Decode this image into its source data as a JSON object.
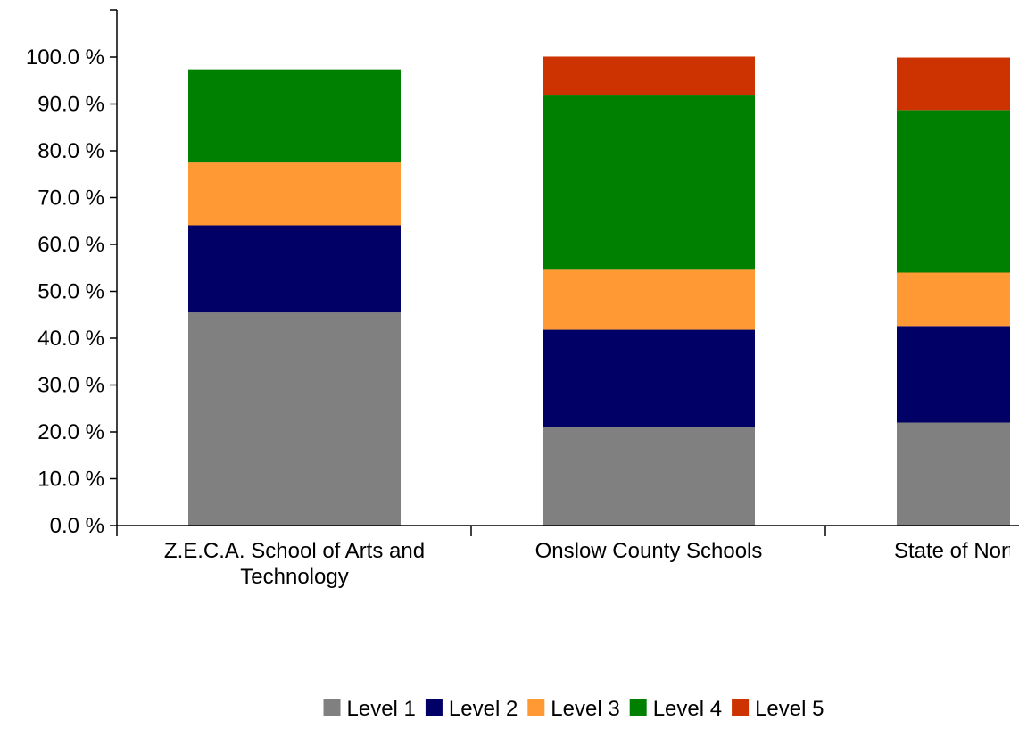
{
  "chart_data": {
    "type": "bar",
    "stacked": true,
    "categories": [
      [
        "Z.E.C.A. School of Arts and",
        "Technology"
      ],
      [
        "Onslow County Schools"
      ],
      [
        "State of North Carolina"
      ]
    ],
    "series": [
      {
        "name": "Level 1",
        "color": "#808080",
        "values": [
          45.5,
          21.0,
          22.0
        ]
      },
      {
        "name": "Level 2",
        "color": "#000066",
        "values": [
          18.6,
          20.8,
          20.6
        ]
      },
      {
        "name": "Level 3",
        "color": "#FF9933",
        "values": [
          13.4,
          12.8,
          11.4
        ]
      },
      {
        "name": "Level 4",
        "color": "#008000",
        "values": [
          19.9,
          37.2,
          34.7
        ]
      },
      {
        "name": "Level 5",
        "color": "#CC3300",
        "values": [
          0,
          8.3,
          11.2
        ]
      }
    ],
    "y_ticks": [
      "0.0 %",
      "10.0 %",
      "20.0 %",
      "30.0 %",
      "40.0 %",
      "50.0 %",
      "60.0 %",
      "70.0 %",
      "80.0 %",
      "90.0 %",
      "100.0 %"
    ],
    "ylim": [
      0,
      100
    ],
    "grid": false,
    "legend_position": "bottom-center"
  }
}
